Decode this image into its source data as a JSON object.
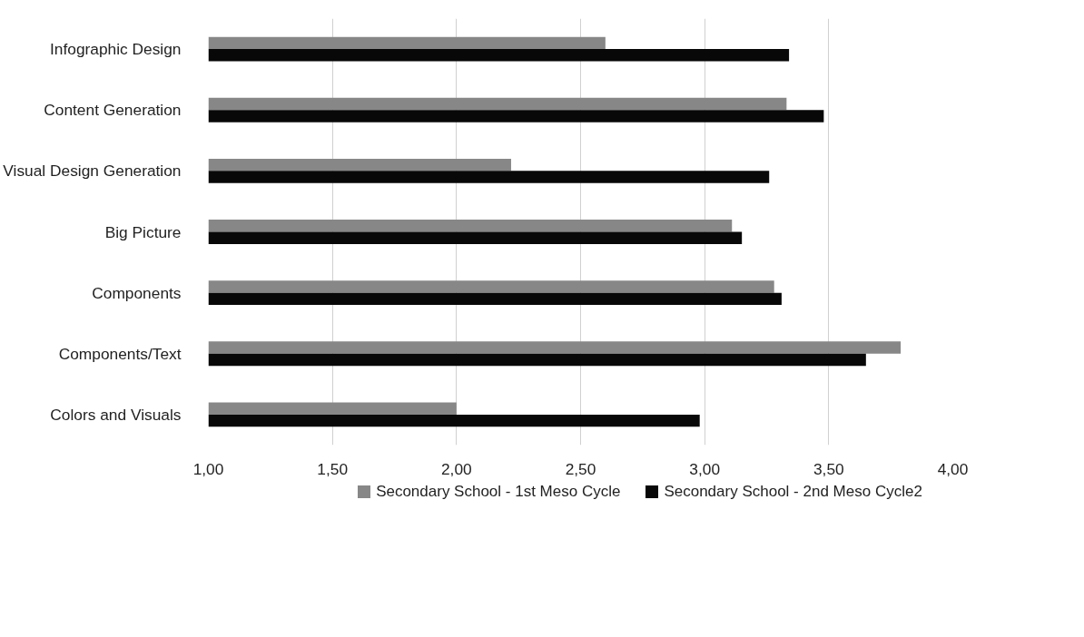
{
  "chart_data": {
    "type": "bar",
    "orientation": "horizontal",
    "categories": [
      "Infographic Design",
      "Content Generation",
      "Visual Design Generation",
      "Big Picture",
      "Components",
      "Components/Text",
      "Colors and Visuals"
    ],
    "series": [
      {
        "name": "Secondary School - 1st Meso Cycle",
        "color": "#878787",
        "values": [
          2.6,
          3.33,
          2.22,
          3.11,
          3.28,
          3.79,
          2.0
        ]
      },
      {
        "name": "Secondary School - 2nd Meso Cycle2",
        "color": "#080808",
        "values": [
          3.34,
          3.48,
          3.26,
          3.15,
          3.31,
          3.65,
          2.98
        ]
      }
    ],
    "xlim": [
      1.0,
      4.0
    ],
    "xticks": [
      {
        "value": 1.0,
        "label": "1,00"
      },
      {
        "value": 1.5,
        "label": "1,50"
      },
      {
        "value": 2.0,
        "label": "2,00"
      },
      {
        "value": 2.5,
        "label": "2,50"
      },
      {
        "value": 3.0,
        "label": "3,00"
      },
      {
        "value": 3.5,
        "label": "3,50"
      },
      {
        "value": 4.0,
        "label": "4,00"
      }
    ],
    "grid": "x",
    "legend": "bottom"
  }
}
